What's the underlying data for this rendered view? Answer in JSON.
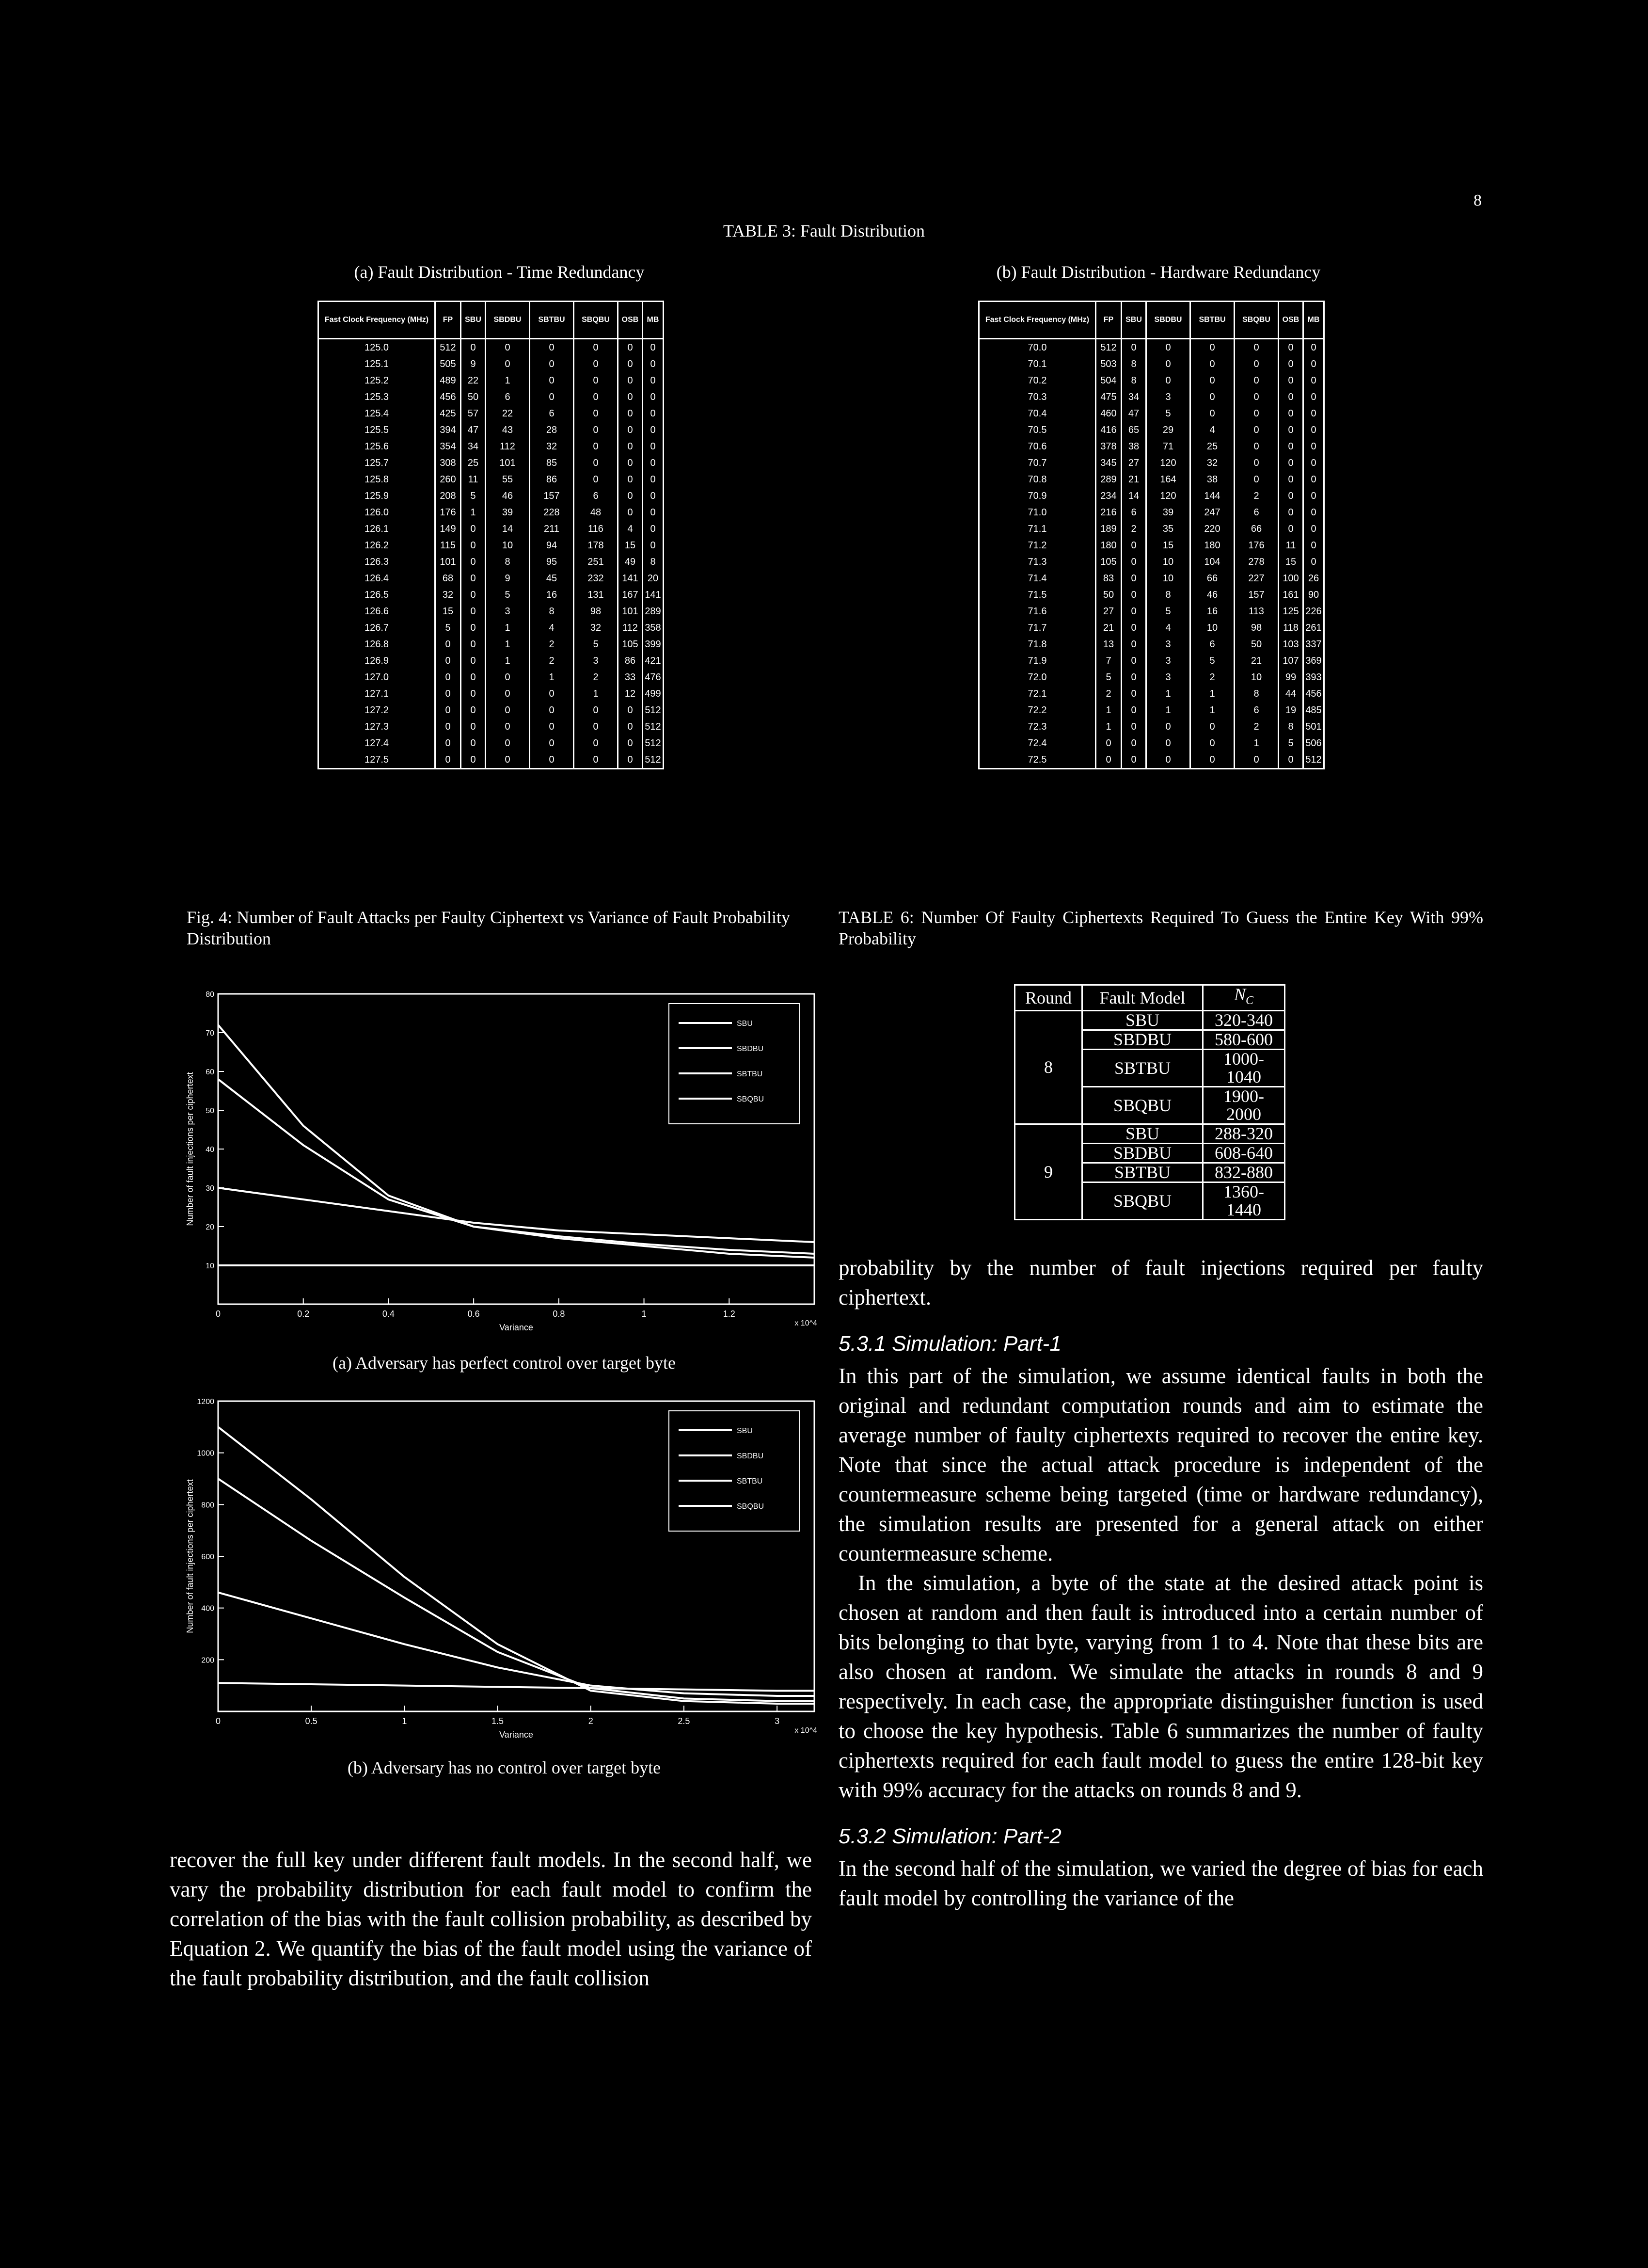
{
  "page_number": "8",
  "table3": {
    "title": "TABLE 3: Fault Distribution",
    "headers": [
      "FP",
      "SBU",
      "SBDBU",
      "SBTBU",
      "SBQBU",
      "OSB",
      "MB"
    ],
    "a": {
      "caption": "(a) Fault Distribution - Time Redundancy",
      "freq_header": "Fast Clock Frequency (MHz)",
      "rows": [
        [
          "125.0",
          "512",
          "0",
          "0",
          "0",
          "0",
          "0",
          "0"
        ],
        [
          "125.1",
          "505",
          "9",
          "0",
          "0",
          "0",
          "0",
          "0"
        ],
        [
          "125.2",
          "489",
          "22",
          "1",
          "0",
          "0",
          "0",
          "0"
        ],
        [
          "125.3",
          "456",
          "50",
          "6",
          "0",
          "0",
          "0",
          "0"
        ],
        [
          "125.4",
          "425",
          "57",
          "22",
          "6",
          "0",
          "0",
          "0"
        ],
        [
          "125.5",
          "394",
          "47",
          "43",
          "28",
          "0",
          "0",
          "0"
        ],
        [
          "125.6",
          "354",
          "34",
          "112",
          "32",
          "0",
          "0",
          "0"
        ],
        [
          "125.7",
          "308",
          "25",
          "101",
          "85",
          "0",
          "0",
          "0"
        ],
        [
          "125.8",
          "260",
          "11",
          "55",
          "86",
          "0",
          "0",
          "0"
        ],
        [
          "125.9",
          "208",
          "5",
          "46",
          "157",
          "6",
          "0",
          "0"
        ],
        [
          "126.0",
          "176",
          "1",
          "39",
          "228",
          "48",
          "0",
          "0"
        ],
        [
          "126.1",
          "149",
          "0",
          "14",
          "211",
          "116",
          "4",
          "0"
        ],
        [
          "126.2",
          "115",
          "0",
          "10",
          "94",
          "178",
          "15",
          "0"
        ],
        [
          "126.3",
          "101",
          "0",
          "8",
          "95",
          "251",
          "49",
          "8"
        ],
        [
          "126.4",
          "68",
          "0",
          "9",
          "45",
          "232",
          "141",
          "20"
        ],
        [
          "126.5",
          "32",
          "0",
          "5",
          "16",
          "131",
          "167",
          "141"
        ],
        [
          "126.6",
          "15",
          "0",
          "3",
          "8",
          "98",
          "101",
          "289"
        ],
        [
          "126.7",
          "5",
          "0",
          "1",
          "4",
          "32",
          "112",
          "358"
        ],
        [
          "126.8",
          "0",
          "0",
          "1",
          "2",
          "5",
          "105",
          "399"
        ],
        [
          "126.9",
          "0",
          "0",
          "1",
          "2",
          "3",
          "86",
          "421"
        ],
        [
          "127.0",
          "0",
          "0",
          "0",
          "1",
          "2",
          "33",
          "476"
        ],
        [
          "127.1",
          "0",
          "0",
          "0",
          "0",
          "1",
          "12",
          "499"
        ],
        [
          "127.2",
          "0",
          "0",
          "0",
          "0",
          "0",
          "0",
          "512"
        ],
        [
          "127.3",
          "0",
          "0",
          "0",
          "0",
          "0",
          "0",
          "512"
        ],
        [
          "127.4",
          "0",
          "0",
          "0",
          "0",
          "0",
          "0",
          "512"
        ],
        [
          "127.5",
          "0",
          "0",
          "0",
          "0",
          "0",
          "0",
          "512"
        ]
      ]
    },
    "b": {
      "caption": "(b) Fault Distribution - Hardware Redundancy",
      "freq_header": "Fast Clock Frequency (MHz)",
      "rows": [
        [
          "70.0",
          "512",
          "0",
          "0",
          "0",
          "0",
          "0",
          "0"
        ],
        [
          "70.1",
          "503",
          "8",
          "0",
          "0",
          "0",
          "0",
          "0"
        ],
        [
          "70.2",
          "504",
          "8",
          "0",
          "0",
          "0",
          "0",
          "0"
        ],
        [
          "70.3",
          "475",
          "34",
          "3",
          "0",
          "0",
          "0",
          "0"
        ],
        [
          "70.4",
          "460",
          "47",
          "5",
          "0",
          "0",
          "0",
          "0"
        ],
        [
          "70.5",
          "416",
          "65",
          "29",
          "4",
          "0",
          "0",
          "0"
        ],
        [
          "70.6",
          "378",
          "38",
          "71",
          "25",
          "0",
          "0",
          "0"
        ],
        [
          "70.7",
          "345",
          "27",
          "120",
          "32",
          "0",
          "0",
          "0"
        ],
        [
          "70.8",
          "289",
          "21",
          "164",
          "38",
          "0",
          "0",
          "0"
        ],
        [
          "70.9",
          "234",
          "14",
          "120",
          "144",
          "2",
          "0",
          "0"
        ],
        [
          "71.0",
          "216",
          "6",
          "39",
          "247",
          "6",
          "0",
          "0"
        ],
        [
          "71.1",
          "189",
          "2",
          "35",
          "220",
          "66",
          "0",
          "0"
        ],
        [
          "71.2",
          "180",
          "0",
          "15",
          "180",
          "176",
          "11",
          "0"
        ],
        [
          "71.3",
          "105",
          "0",
          "10",
          "104",
          "278",
          "15",
          "0"
        ],
        [
          "71.4",
          "83",
          "0",
          "10",
          "66",
          "227",
          "100",
          "26"
        ],
        [
          "71.5",
          "50",
          "0",
          "8",
          "46",
          "157",
          "161",
          "90"
        ],
        [
          "71.6",
          "27",
          "0",
          "5",
          "16",
          "113",
          "125",
          "226"
        ],
        [
          "71.7",
          "21",
          "0",
          "4",
          "10",
          "98",
          "118",
          "261"
        ],
        [
          "71.8",
          "13",
          "0",
          "3",
          "6",
          "50",
          "103",
          "337"
        ],
        [
          "71.9",
          "7",
          "0",
          "3",
          "5",
          "21",
          "107",
          "369"
        ],
        [
          "72.0",
          "5",
          "0",
          "3",
          "2",
          "10",
          "99",
          "393"
        ],
        [
          "72.1",
          "2",
          "0",
          "1",
          "1",
          "8",
          "44",
          "456"
        ],
        [
          "72.2",
          "1",
          "0",
          "1",
          "1",
          "6",
          "19",
          "485"
        ],
        [
          "72.3",
          "1",
          "0",
          "0",
          "0",
          "2",
          "8",
          "501"
        ],
        [
          "72.4",
          "0",
          "0",
          "0",
          "0",
          "1",
          "5",
          "506"
        ],
        [
          "72.5",
          "0",
          "0",
          "0",
          "0",
          "0",
          "0",
          "512"
        ]
      ]
    }
  },
  "fig4": {
    "caption": "Fig. 4: Number of Fault Attacks per Faulty Ciphertext vs Variance of Fault Probability Distribution",
    "ylabel": "Number of fault injections per ciphertext",
    "xlabel": "Variance",
    "legend": [
      "SBU",
      "SBDBU",
      "SBTBU",
      "SBQBU"
    ],
    "a_caption": "(a) Adversary has perfect control over target byte",
    "b_caption": "(b) Adversary has no control over target byte"
  },
  "chart_data": [
    {
      "type": "line",
      "title": "",
      "xlabel": "Variance",
      "ylabel": "Number of fault injections per ciphertext",
      "x_multiplier": "x 10^4",
      "xlim": [
        0,
        1.4
      ],
      "ylim": [
        0,
        80
      ],
      "xticks": [
        "0",
        "0.2",
        "0.4",
        "0.6",
        "0.8",
        "1",
        "1.2"
      ],
      "xtick_values": [
        0,
        0.2,
        0.4,
        0.6,
        0.8,
        1.0,
        1.2
      ],
      "yticks": [
        "10",
        "20",
        "30",
        "40",
        "50",
        "60",
        "70",
        "80"
      ],
      "ytick_values": [
        10,
        20,
        30,
        40,
        50,
        60,
        70,
        80
      ],
      "legend_position": "top-right",
      "series": [
        {
          "name": "SBU",
          "x": [
            0,
            0.2,
            0.4,
            0.6,
            0.8,
            1.0,
            1.2,
            1.4
          ],
          "values": [
            72,
            46,
            28,
            20,
            17,
            15,
            13,
            12
          ]
        },
        {
          "name": "SBDBU",
          "x": [
            0,
            0.2,
            0.4,
            0.6,
            0.8,
            1.0,
            1.2,
            1.4
          ],
          "values": [
            58,
            41,
            27,
            20,
            17.5,
            15.5,
            14,
            13
          ]
        },
        {
          "name": "SBTBU",
          "x": [
            0,
            0.2,
            0.4,
            0.6,
            0.8,
            1.0,
            1.2,
            1.4
          ],
          "values": [
            30,
            27,
            24,
            21,
            19,
            18,
            17,
            16
          ]
        },
        {
          "name": "SBQBU",
          "x": [
            0,
            0.2,
            0.4,
            0.6,
            0.8,
            1.0,
            1.2,
            1.4
          ],
          "values": [
            10,
            10,
            10,
            10,
            10,
            10,
            10,
            10
          ]
        }
      ]
    },
    {
      "type": "line",
      "title": "",
      "xlabel": "Variance",
      "ylabel": "Number of fault injections per ciphertext",
      "x_multiplier": "x 10^4",
      "xlim": [
        0,
        3.2
      ],
      "ylim": [
        0,
        1200
      ],
      "xticks": [
        "0",
        "0.5",
        "1",
        "1.5",
        "2",
        "2.5",
        "3"
      ],
      "xtick_values": [
        0,
        0.5,
        1,
        1.5,
        2,
        2.5,
        3
      ],
      "yticks": [
        "200",
        "400",
        "600",
        "800",
        "1000",
        "1200"
      ],
      "ytick_values": [
        200,
        400,
        600,
        800,
        1000,
        1200
      ],
      "legend_position": "top-right",
      "series": [
        {
          "name": "SBU",
          "x": [
            0,
            0.5,
            1,
            1.5,
            2,
            2.5,
            3,
            3.2
          ],
          "values": [
            1100,
            820,
            520,
            260,
            80,
            40,
            30,
            30
          ]
        },
        {
          "name": "SBDBU",
          "x": [
            0,
            0.5,
            1,
            1.5,
            2,
            2.5,
            3,
            3.2
          ],
          "values": [
            900,
            660,
            440,
            230,
            90,
            50,
            40,
            40
          ]
        },
        {
          "name": "SBTBU",
          "x": [
            0,
            0.5,
            1,
            1.5,
            2,
            2.5,
            3,
            3.2
          ],
          "values": [
            460,
            360,
            260,
            170,
            100,
            70,
            60,
            60
          ]
        },
        {
          "name": "SBQBU",
          "x": [
            0,
            0.5,
            1,
            1.5,
            2,
            2.5,
            3,
            3.2
          ],
          "values": [
            110,
            105,
            100,
            95,
            90,
            85,
            80,
            80
          ]
        }
      ]
    }
  ],
  "table6": {
    "caption": "TABLE 6: Number Of Faulty Ciphertexts Required To Guess the Entire Key With 99% Probability",
    "headers": [
      "Round",
      "Fault Model",
      "N_C"
    ],
    "groups": [
      {
        "round": "8",
        "rows": [
          [
            "SBU",
            "320-340"
          ],
          [
            "SBDBU",
            "580-600"
          ],
          [
            "SBTBU",
            "1000-1040"
          ],
          [
            "SBQBU",
            "1900-2000"
          ]
        ]
      },
      {
        "round": "9",
        "rows": [
          [
            "SBU",
            "288-320"
          ],
          [
            "SBDBU",
            "608-640"
          ],
          [
            "SBTBU",
            "832-880"
          ],
          [
            "SBQBU",
            "1360-1440"
          ]
        ]
      }
    ]
  },
  "text": {
    "left_para": "recover the full key under different fault models. In the second half, we vary the probability distribution for each fault model to confirm the correlation of the bias with the fault collision probability, as described by Equation 2. We quantify the bias of the fault model using the variance of the fault probability distribution, and the fault collision",
    "right_p1": "probability by the number of fault injections required per faulty ciphertext.",
    "sec531": "5.3.1   Simulation: Part-1",
    "right_p2": "In this part of the simulation, we assume identical faults in both the original and redundant computation rounds and aim to estimate the average number of faulty ciphertexts required to recover the entire key. Note that since the actual attack procedure is independent of the countermeasure scheme being targeted (time or hardware redundancy), the simulation results are presented for a general attack on either countermeasure scheme.",
    "right_p3": "In the simulation, a byte of the state at the desired attack point is chosen at random and then fault is introduced into a certain number of bits belonging to that byte, varying from 1 to 4. Note that these bits are also chosen at random. We simulate the attacks in rounds 8 and 9 respectively. In each case, the appropriate distinguisher function is used to choose the key hypothesis. Table 6 summarizes the number of faulty ciphertexts required for each fault model to guess the entire 128-bit key with 99% accuracy for the attacks on rounds 8 and 9.",
    "sec532": "5.3.2   Simulation: Part-2",
    "right_p4": "In the second half of the simulation, we varied the degree of bias for each fault model by controlling the variance of the"
  }
}
